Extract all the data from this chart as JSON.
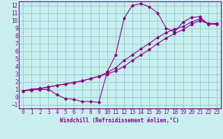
{
  "xlabel": "Windchill (Refroidissement éolien,°C)",
  "bg_color": "#c8eeee",
  "line_color": "#880088",
  "grid_color": "#99cccc",
  "xlim": [
    -0.5,
    23.5
  ],
  "ylim": [
    -1.5,
    12.5
  ],
  "xticks": [
    0,
    1,
    2,
    3,
    4,
    5,
    6,
    7,
    8,
    9,
    10,
    11,
    12,
    13,
    14,
    15,
    16,
    17,
    18,
    19,
    20,
    21,
    22,
    23
  ],
  "yticks": [
    -1,
    0,
    1,
    2,
    3,
    4,
    5,
    6,
    7,
    8,
    9,
    10,
    11,
    12
  ],
  "line1_x": [
    0,
    1,
    2,
    3,
    4,
    5,
    6,
    7,
    8,
    9,
    10,
    11,
    12,
    13,
    14,
    15,
    16,
    17,
    18,
    19,
    20,
    21,
    22,
    23
  ],
  "line1_y": [
    0.8,
    0.9,
    1.0,
    1.0,
    0.3,
    -0.2,
    -0.3,
    -0.6,
    -0.6,
    -0.7,
    3.3,
    5.5,
    10.3,
    12.0,
    12.2,
    11.8,
    11.0,
    9.0,
    8.5,
    9.8,
    10.4,
    10.5,
    9.5,
    9.5
  ],
  "line2_x": [
    0,
    1,
    2,
    3,
    4,
    5,
    6,
    7,
    8,
    9,
    10,
    11,
    12,
    13,
    14,
    15,
    16,
    17,
    18,
    19,
    20,
    21,
    22,
    23
  ],
  "line2_y": [
    0.8,
    1.0,
    1.1,
    1.3,
    1.5,
    1.7,
    1.9,
    2.1,
    2.4,
    2.7,
    3.2,
    3.8,
    4.8,
    5.5,
    6.3,
    7.0,
    7.8,
    8.4,
    8.9,
    9.2,
    9.8,
    10.2,
    9.6,
    9.6
  ],
  "line3_x": [
    0,
    1,
    2,
    3,
    4,
    5,
    6,
    7,
    8,
    9,
    10,
    11,
    12,
    13,
    14,
    15,
    16,
    17,
    18,
    19,
    20,
    21,
    22,
    23
  ],
  "line3_y": [
    0.8,
    1.0,
    1.1,
    1.3,
    1.5,
    1.7,
    1.9,
    2.1,
    2.4,
    2.7,
    3.0,
    3.4,
    4.0,
    4.8,
    5.5,
    6.2,
    7.0,
    7.7,
    8.3,
    8.8,
    9.5,
    10.0,
    9.6,
    9.6
  ],
  "tick_fontsize": 5.5,
  "label_fontsize": 5.5
}
